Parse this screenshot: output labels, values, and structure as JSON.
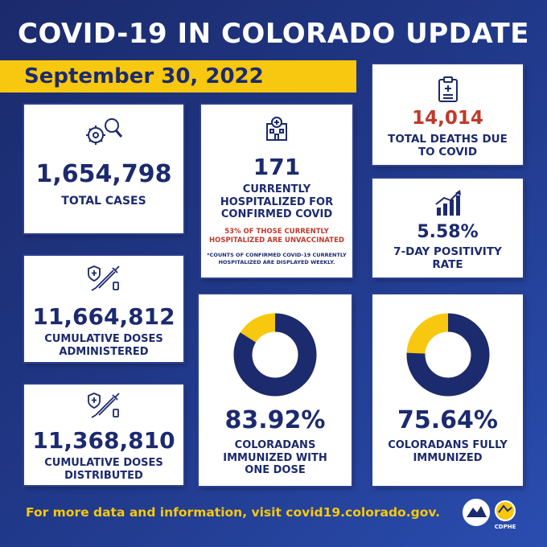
{
  "title": "COVID-19 IN COLORADO UPDATE",
  "date": "September 30, 2022",
  "cards": {
    "total_cases": {
      "value": "1,654,798",
      "label": "TOTAL CASES"
    },
    "hospitalized": {
      "value": "171",
      "label_lines": [
        "CURRENTLY",
        "HOSPITALIZED FOR",
        "CONFIRMED COVID"
      ],
      "note_lines": [
        "53% OF THOSE CURRENTLY",
        "HOSPITALIZED ARE UNVACCINATED"
      ],
      "footnote_lines": [
        "*COUNTS OF CONFIRMED COVID-19 CURRENTLY",
        "HOSPITALIZED ARE DISPLAYED WEEKLY."
      ]
    },
    "deaths": {
      "value": "14,014",
      "label_lines": [
        "TOTAL DEATHS DUE",
        "TO COVID"
      ]
    },
    "positivity": {
      "value": "5.58%",
      "label_lines": [
        "7-DAY POSITIVITY",
        "RATE"
      ]
    },
    "doses_administered": {
      "value": "11,664,812",
      "label_lines": [
        "CUMULATIVE DOSES",
        "ADMINISTERED"
      ]
    },
    "doses_distributed": {
      "value": "11,368,810",
      "label_lines": [
        "CUMULATIVE DOSES",
        "DISTRIBUTED"
      ]
    },
    "one_dose": {
      "value": "83.92%",
      "fraction": 0.8392,
      "label_lines": [
        "COLORADANS",
        "IMMUNIZED WITH",
        "ONE DOSE"
      ]
    },
    "fully": {
      "value": "75.64%",
      "fraction": 0.7564,
      "label_lines": [
        "COLORADANS FULLY",
        "IMMUNIZED"
      ]
    }
  },
  "colors": {
    "navy": "#1c2a6e",
    "yellow": "#f7c80f",
    "red": "#c0392b"
  },
  "footer": "For more data and information, visit covid19.colorado.gov.",
  "logo": {
    "text": "CDPHE"
  }
}
